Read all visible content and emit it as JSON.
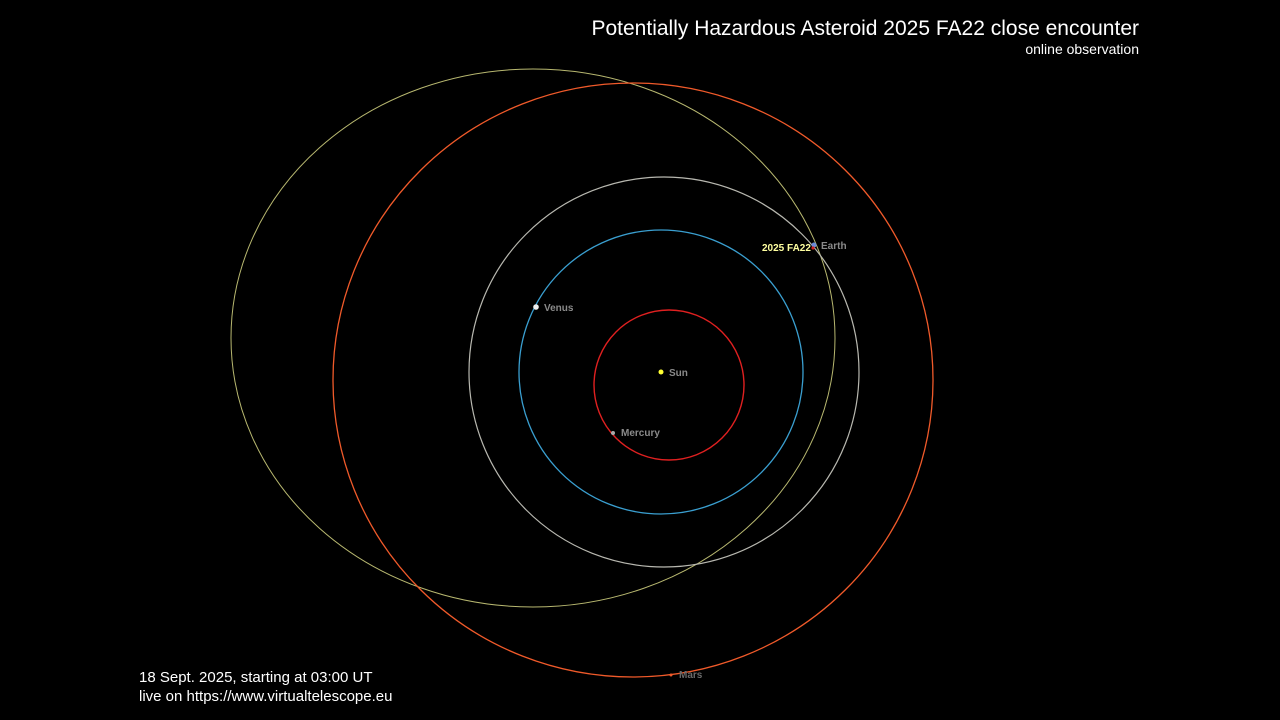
{
  "header": {
    "title": "Potentially Hazardous Asteroid 2025 FA22 close encounter",
    "subtitle": "online observation"
  },
  "footer": {
    "date": "18 Sept. 2025, starting at 03:00 UT",
    "live": "live on https://www.virtualtelescope.eu"
  },
  "bodies": {
    "sun": {
      "label": "Sun",
      "color": "#ffff33"
    },
    "mercury": {
      "label": "Mercury",
      "orbit_color": "#e02020"
    },
    "venus": {
      "label": "Venus",
      "orbit_color": "#3a9fd0"
    },
    "earth": {
      "label": "Earth",
      "orbit_color": "#b8b8b0"
    },
    "mars": {
      "label": "Mars",
      "orbit_color": "#f05a2a"
    },
    "asteroid": {
      "label": "2025 FA22",
      "orbit_color": "#b8b870",
      "label_color": "#ffffa0"
    }
  }
}
